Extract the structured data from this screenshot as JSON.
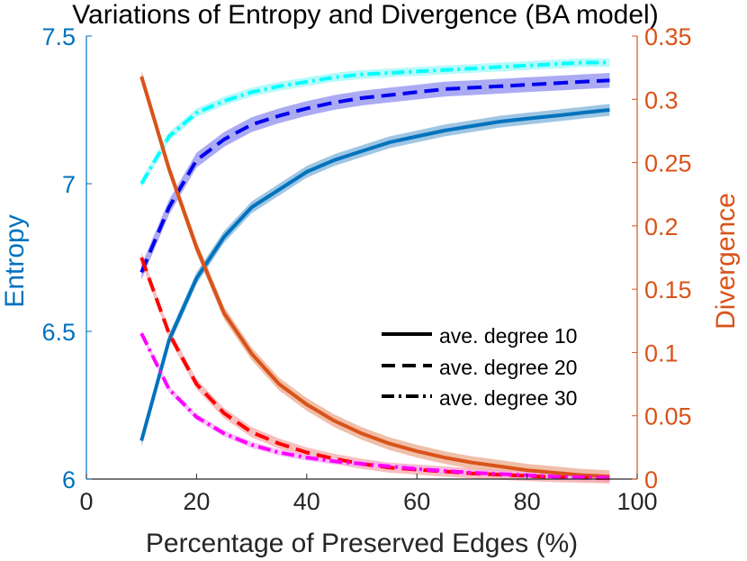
{
  "chart_data": {
    "type": "line",
    "title": "Variations of Entropy and Divergence (BA model)",
    "xlabel": "Percentage of Preserved Edges (%)",
    "ylabel_left": "Entropy",
    "ylabel_right": "Divergence",
    "xlim": [
      0,
      100
    ],
    "ylim_left": [
      6,
      7.5
    ],
    "ylim_right": [
      0,
      0.35
    ],
    "x_ticks": [
      0,
      20,
      40,
      60,
      80,
      100
    ],
    "y_left_ticks": [
      6,
      6.5,
      7,
      7.5
    ],
    "y_left_tick_labels": [
      "6",
      "6.5",
      "7",
      "7.5"
    ],
    "y_right_ticks": [
      0,
      0.05,
      0.1,
      0.15,
      0.2,
      0.25,
      0.3,
      0.35
    ],
    "y_right_tick_labels": [
      "0",
      "0.05",
      "0.1",
      "0.15",
      "0.2",
      "0.25",
      "0.3",
      "0.35"
    ],
    "x": [
      10,
      15,
      20,
      25,
      30,
      35,
      40,
      45,
      50,
      55,
      60,
      65,
      70,
      75,
      80,
      85,
      90,
      95
    ],
    "colors": {
      "left_axis": "#0072BD",
      "right_axis": "#D95319",
      "axis_line": "#262626"
    },
    "series": [
      {
        "name": "entropy-deg10",
        "axis": "left",
        "style": "solid",
        "color": "#0072BD",
        "band_color": "#7FB3DA",
        "band": 0.02,
        "values": [
          6.13,
          6.47,
          6.68,
          6.82,
          6.92,
          6.98,
          7.04,
          7.08,
          7.11,
          7.14,
          7.16,
          7.18,
          7.195,
          7.21,
          7.22,
          7.23,
          7.24,
          7.25
        ]
      },
      {
        "name": "entropy-deg20",
        "axis": "left",
        "style": "dashed",
        "color": "#0000EE",
        "band_color": "#8F8FF0",
        "band": 0.025,
        "values": [
          6.7,
          6.92,
          7.08,
          7.15,
          7.2,
          7.23,
          7.255,
          7.275,
          7.29,
          7.3,
          7.31,
          7.32,
          7.325,
          7.33,
          7.335,
          7.34,
          7.345,
          7.35
        ]
      },
      {
        "name": "entropy-deg30",
        "axis": "left",
        "style": "dashdot",
        "color": "#00FFFF",
        "band_color": "#A0F7F7",
        "band": 0.015,
        "values": [
          7.0,
          7.16,
          7.24,
          7.28,
          7.31,
          7.33,
          7.345,
          7.36,
          7.37,
          7.375,
          7.38,
          7.385,
          7.39,
          7.395,
          7.4,
          7.405,
          7.41,
          7.41
        ]
      },
      {
        "name": "divergence-deg10",
        "axis": "right",
        "style": "solid",
        "color": "#D95319",
        "band_color": "#EBA98C",
        "band": 0.005,
        "values": [
          0.318,
          0.245,
          0.183,
          0.131,
          0.099,
          0.075,
          0.059,
          0.046,
          0.036,
          0.028,
          0.022,
          0.017,
          0.013,
          0.01,
          0.007,
          0.005,
          0.003,
          0.002
        ]
      },
      {
        "name": "divergence-deg20",
        "axis": "right",
        "style": "dashed",
        "color": "#FF0000",
        "band_color": "#F7AAAA",
        "band": 0.004,
        "values": [
          0.175,
          0.115,
          0.075,
          0.052,
          0.037,
          0.028,
          0.021,
          0.016,
          0.012,
          0.009,
          0.0075,
          0.006,
          0.0045,
          0.0035,
          0.0025,
          0.0015,
          0.001,
          0.0005
        ]
      },
      {
        "name": "divergence-deg30",
        "axis": "right",
        "style": "dashdot",
        "color": "#FF00FF",
        "band_color": "#F7B2F7",
        "band": 0.0025,
        "values": [
          0.115,
          0.071,
          0.049,
          0.036,
          0.027,
          0.021,
          0.017,
          0.014,
          0.012,
          0.01,
          0.008,
          0.0065,
          0.005,
          0.004,
          0.003,
          0.002,
          0.0015,
          0.001
        ]
      }
    ],
    "legend": {
      "placement": "center-right",
      "entries": [
        {
          "label": "ave. degree 10",
          "style": "solid"
        },
        {
          "label": "ave. degree 20",
          "style": "dashed"
        },
        {
          "label": "ave. degree 30",
          "style": "dashdot"
        }
      ]
    }
  }
}
